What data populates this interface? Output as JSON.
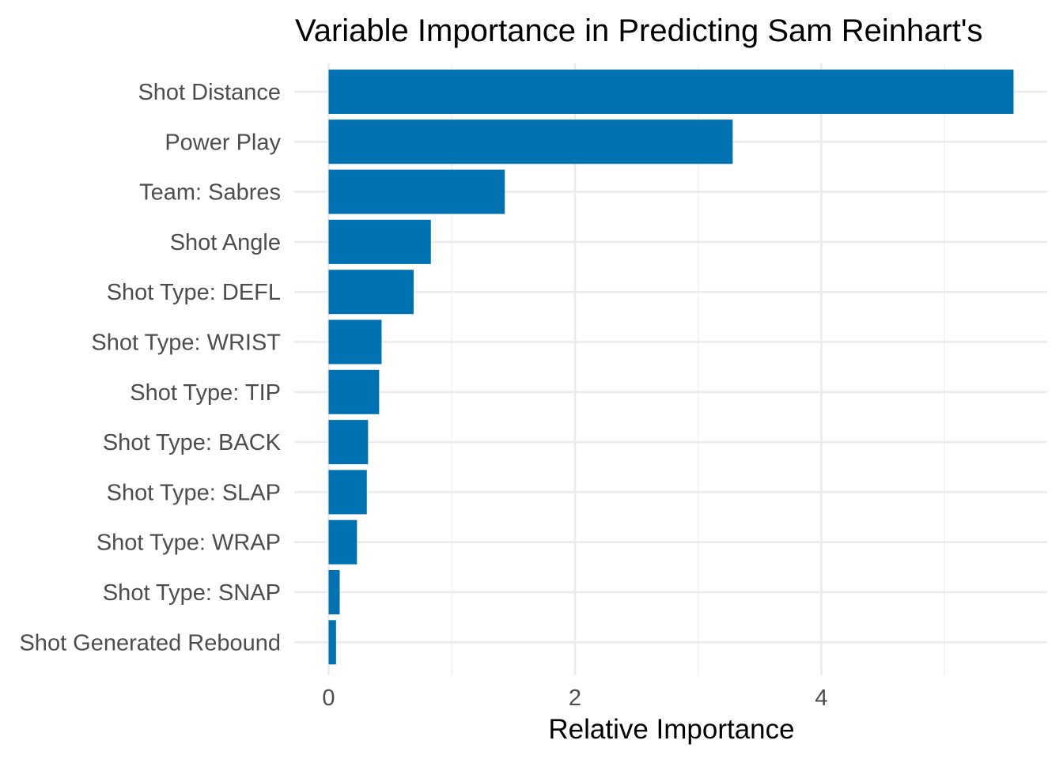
{
  "chart_data": {
    "type": "bar",
    "orientation": "horizontal",
    "title": "Variable Importance in Predicting Sam Reinhart's",
    "xlabel": "Relative Importance",
    "ylabel": "",
    "xlim": [
      0,
      5.8
    ],
    "x_ticks": [
      0,
      2,
      4
    ],
    "x_tick_labels": [
      "0",
      "2",
      "4"
    ],
    "grid": true,
    "legend": "none",
    "bar_color": "#0072B2",
    "categories": [
      "Shot Distance",
      "Power Play",
      "Team: Sabres",
      "Shot Angle",
      "Shot Type: DEFL",
      "Shot Type: WRIST",
      "Shot Type: TIP",
      "Shot Type: BACK",
      "Shot Type: SLAP",
      "Shot Type: WRAP",
      "Shot Type: SNAP",
      "Shot Generated Rebound"
    ],
    "values": [
      5.56,
      3.28,
      1.43,
      0.83,
      0.69,
      0.43,
      0.41,
      0.32,
      0.31,
      0.23,
      0.09,
      0.06
    ]
  }
}
